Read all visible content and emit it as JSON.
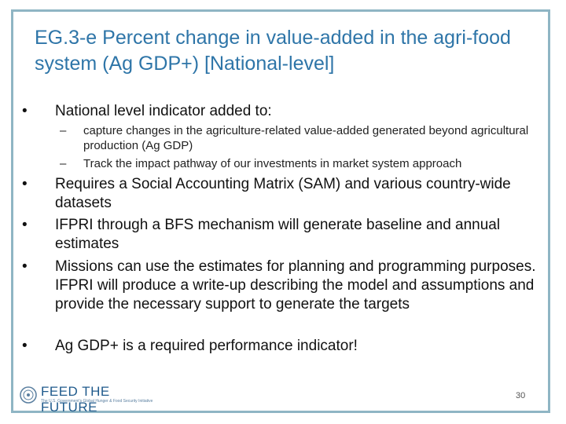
{
  "slide": {
    "title": "EG.3-e Percent change in value-added in the agri-food system (Ag GDP+) [National-level]",
    "bullet_symbol": "•",
    "dash_symbol": "–",
    "bullets": [
      {
        "text": "National level indicator added to:",
        "subitems": [
          "capture changes in the agriculture-related value-added generated beyond agricultural production (Ag GDP)",
          "Track the impact pathway of our investments in market system approach"
        ]
      },
      {
        "text": "Requires a Social Accounting Matrix (SAM) and various country-wide datasets"
      },
      {
        "text": "IFPRI through a BFS mechanism will generate baseline and annual estimates"
      },
      {
        "text": "Missions can use the estimates for planning and programming purposes. IFPRI will produce a write-up describing the model and assumptions and provide the necessary support to generate the targets"
      },
      {
        "text": "Ag GDP+ is a required performance indicator!"
      }
    ],
    "logo": {
      "name": "FEED THE FUTURE",
      "tagline": "The U.S. Government's Global Hunger & Food Security Initiative"
    },
    "page_number": "30",
    "colors": {
      "title": "#2e75a8",
      "frame": "#8fb5c4",
      "logo": "#1f5a8c"
    }
  }
}
